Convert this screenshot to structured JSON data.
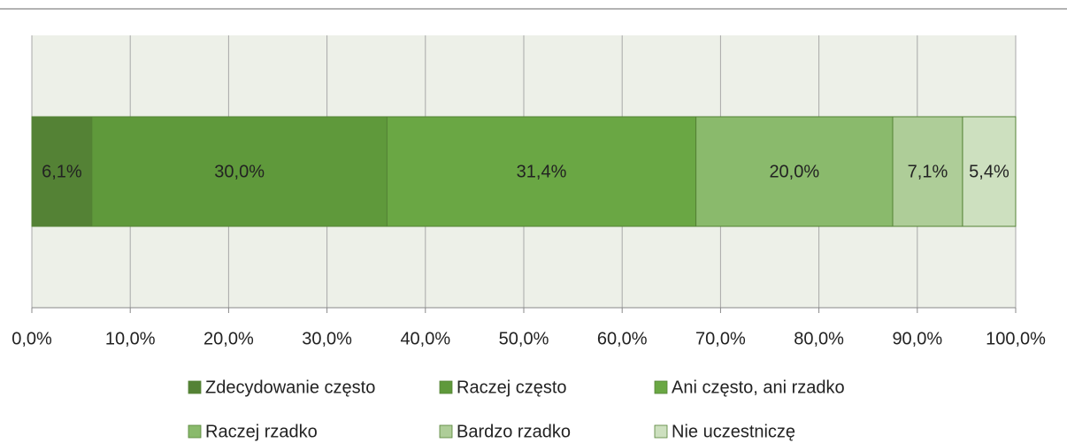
{
  "chart_data": {
    "type": "bar",
    "orientation": "horizontal",
    "stacked": true,
    "categories": [
      null
    ],
    "series": [
      {
        "name": "Zdecydowanie często",
        "color": "#548235",
        "values": [
          6.1
        ],
        "value_labels": [
          "6,1%"
        ]
      },
      {
        "name": "Raczej często",
        "color": "#5f993b",
        "values": [
          30.0
        ],
        "value_labels": [
          "30,0%"
        ]
      },
      {
        "name": "Ani często, ani rzadko",
        "color": "#6aa744",
        "values": [
          31.4
        ],
        "value_labels": [
          "31,4%"
        ]
      },
      {
        "name": "Raczej rzadko",
        "color": "#8aba6c",
        "values": [
          20.0
        ],
        "value_labels": [
          "20,0%"
        ]
      },
      {
        "name": "Bardzo rzadko",
        "color": "#aecd98",
        "values": [
          7.1
        ],
        "value_labels": [
          "7,1%"
        ]
      },
      {
        "name": "Nie uczestniczę",
        "color": "#cde0bf",
        "values": [
          5.4
        ],
        "value_labels": [
          "5,4%"
        ]
      }
    ],
    "xlim": [
      0,
      100
    ],
    "xticks": [
      {
        "value": 0,
        "label": "0,0%"
      },
      {
        "value": 10,
        "label": "10,0%"
      },
      {
        "value": 20,
        "label": "20,0%"
      },
      {
        "value": 30,
        "label": "30,0%"
      },
      {
        "value": 40,
        "label": "40,0%"
      },
      {
        "value": 50,
        "label": "50,0%"
      },
      {
        "value": 60,
        "label": "60,0%"
      },
      {
        "value": 70,
        "label": "70,0%"
      },
      {
        "value": 80,
        "label": "80,0%"
      },
      {
        "value": 90,
        "label": "90,0%"
      },
      {
        "value": 100,
        "label": "100,0%"
      }
    ],
    "grid": true,
    "legend": "bottom"
  }
}
